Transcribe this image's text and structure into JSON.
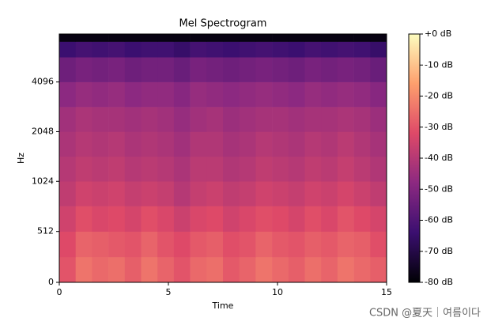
{
  "chart_data": {
    "type": "heatmap",
    "title": "Mel Spectrogram",
    "x_label": "Time",
    "y_label": "Hz",
    "xlim": [
      0,
      15
    ],
    "xticks": [
      0,
      5,
      10,
      15
    ],
    "ylim": [
      0,
      8000
    ],
    "yticks": [
      0,
      512,
      1024,
      2048,
      4096
    ],
    "yscale": "symlog",
    "ybase": 2,
    "linthresh": 1000,
    "linscale": 1,
    "x_bins": [
      0,
      0.75,
      1.5,
      2.25,
      3,
      3.75,
      4.5,
      5.25,
      6,
      6.75,
      7.5,
      8.25,
      9,
      9.75,
      10.5,
      11.25,
      12,
      12.75,
      13.5,
      14.25,
      15
    ],
    "y_bins": [
      0,
      256,
      512,
      768,
      1024,
      1448,
      2048,
      2896,
      4096,
      5793,
      7200,
      8000
    ],
    "values": [
      [
        -30,
        -24,
        -26,
        -25,
        -28,
        -24,
        -27,
        -30,
        -26,
        -25,
        -29,
        -27,
        -24,
        -26,
        -28,
        -25,
        -27,
        -24,
        -26,
        -28
      ],
      [
        -32,
        -27,
        -28,
        -29,
        -30,
        -27,
        -30,
        -32,
        -29,
        -28,
        -31,
        -30,
        -27,
        -29,
        -30,
        -28,
        -29,
        -27,
        -28,
        -31
      ],
      [
        -35,
        -31,
        -33,
        -32,
        -34,
        -31,
        -33,
        -36,
        -33,
        -32,
        -35,
        -33,
        -31,
        -32,
        -34,
        -31,
        -33,
        -30,
        -32,
        -34
      ],
      [
        -38,
        -35,
        -36,
        -35,
        -37,
        -36,
        -37,
        -40,
        -37,
        -36,
        -38,
        -37,
        -35,
        -36,
        -37,
        -35,
        -36,
        -34,
        -36,
        -38
      ],
      [
        -40,
        -38,
        -39,
        -38,
        -40,
        -39,
        -40,
        -42,
        -39,
        -39,
        -41,
        -40,
        -38,
        -39,
        -40,
        -38,
        -39,
        -37,
        -39,
        -41
      ],
      [
        -42,
        -40,
        -41,
        -40,
        -42,
        -41,
        -42,
        -44,
        -41,
        -41,
        -43,
        -42,
        -40,
        -41,
        -42,
        -40,
        -41,
        -39,
        -41,
        -43
      ],
      [
        -44,
        -42,
        -43,
        -43,
        -44,
        -43,
        -44,
        -46,
        -44,
        -43,
        -45,
        -44,
        -43,
        -43,
        -44,
        -43,
        -43,
        -42,
        -43,
        -45
      ],
      [
        -48,
        -46,
        -47,
        -46,
        -48,
        -47,
        -47,
        -49,
        -46,
        -47,
        -48,
        -47,
        -46,
        -47,
        -48,
        -46,
        -47,
        -46,
        -47,
        -49
      ],
      [
        -54,
        -52,
        -53,
        -52,
        -54,
        -53,
        -53,
        -55,
        -52,
        -53,
        -54,
        -53,
        -52,
        -53,
        -54,
        -52,
        -53,
        -52,
        -53,
        -55
      ],
      [
        -64,
        -62,
        -63,
        -62,
        -64,
        -63,
        -63,
        -65,
        -62,
        -63,
        -64,
        -63,
        -62,
        -63,
        -64,
        -62,
        -63,
        -62,
        -63,
        -65
      ],
      [
        -78,
        -78,
        -78,
        -78,
        -78,
        -78,
        -78,
        -78,
        -78,
        -78,
        -78,
        -78,
        -78,
        -78,
        -78,
        -78,
        -78,
        -78,
        -78,
        -78
      ]
    ],
    "colormap": "magma",
    "clim": [
      -80,
      0
    ],
    "cticks": [
      {
        "value": 0,
        "label": "+0 dB"
      },
      {
        "value": -10,
        "label": "-10 dB"
      },
      {
        "value": -20,
        "label": "-20 dB"
      },
      {
        "value": -30,
        "label": "-30 dB"
      },
      {
        "value": -40,
        "label": "-40 dB"
      },
      {
        "value": -50,
        "label": "-50 dB"
      },
      {
        "value": -60,
        "label": "-60 dB"
      },
      {
        "value": -70,
        "label": "-70 dB"
      },
      {
        "value": -80,
        "label": "-80 dB"
      }
    ]
  },
  "watermark": "CSDN @夏天｜여름이다"
}
